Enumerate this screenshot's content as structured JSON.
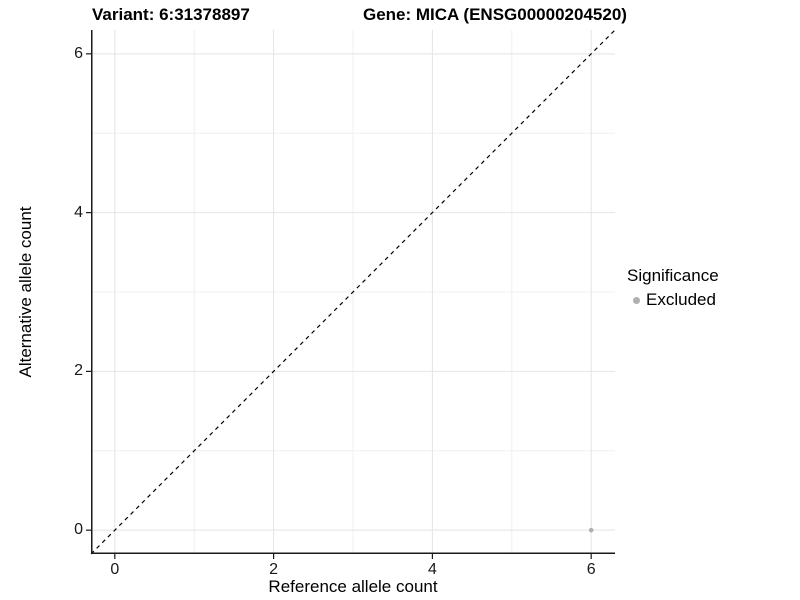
{
  "titles": {
    "variant": "Variant: 6:31378897",
    "gene": "Gene: MICA (ENSG00000204520)"
  },
  "chart_data": {
    "type": "scatter",
    "xlabel": "Reference allele count",
    "ylabel": "Alternative allele count",
    "xlim": [
      -0.3,
      6.3
    ],
    "ylim": [
      -0.3,
      6.3
    ],
    "x_major_ticks": [
      0,
      2,
      4,
      6
    ],
    "y_major_ticks": [
      0,
      2,
      4,
      6
    ],
    "x_minor_ticks": [
      1,
      3,
      5
    ],
    "y_minor_ticks": [
      1,
      3,
      5
    ],
    "grid": true,
    "identity_line": {
      "style": "dashed",
      "from": [
        -0.3,
        -0.3
      ],
      "to": [
        6.3,
        6.3
      ]
    },
    "points": [
      {
        "x": 6,
        "y": 0,
        "series": "Excluded"
      }
    ],
    "legend": {
      "title": "Significance",
      "position": "right",
      "entries": [
        {
          "label": "Excluded",
          "color": "#b0b0b0",
          "marker": "dot-icon"
        }
      ]
    },
    "colors": {
      "point": "#b0b0b0",
      "grid_major": "#e4e4e4",
      "grid_minor": "#f0f0f0",
      "axis_line": "#1a1a1a",
      "dashed_line": "#000000",
      "background": "#ffffff"
    }
  }
}
